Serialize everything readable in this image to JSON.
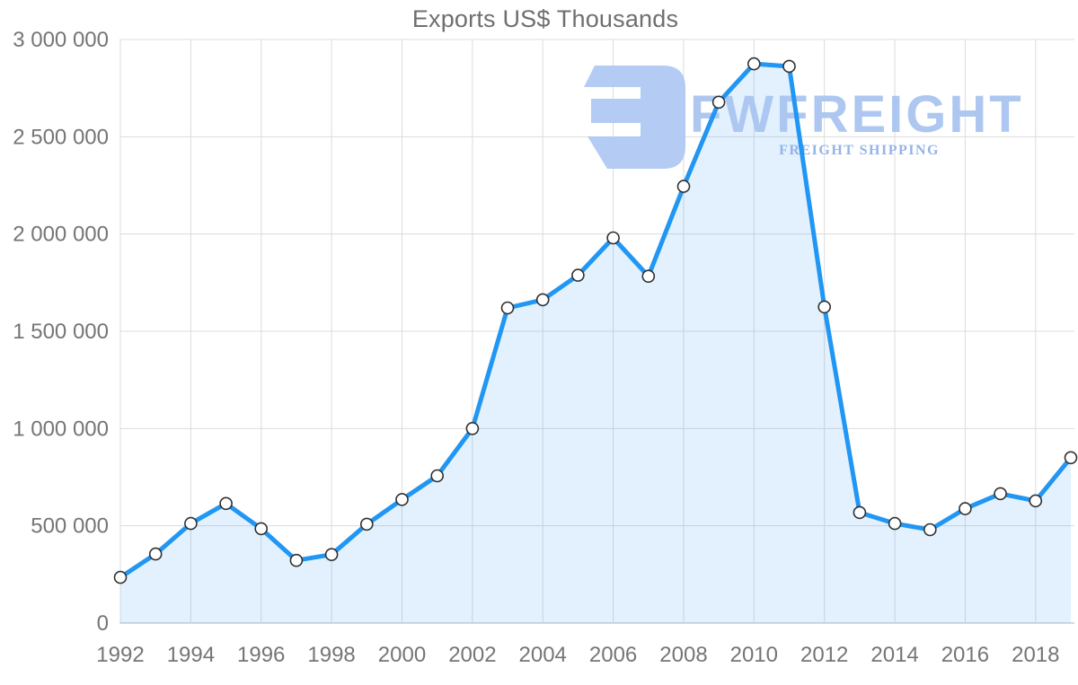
{
  "title": {
    "text": "Exports US$ Thousands"
  },
  "watermark": {
    "brand": "FWFREIGHT",
    "tagline": "FREIGHT SHIPPING",
    "brand_color": "#aac5f1",
    "tagline_color": "#8fb0e8",
    "logo_color": "#b0c8f3"
  },
  "chart_data": {
    "type": "area",
    "title": "Exports US$ Thousands",
    "xlabel": "",
    "ylabel": "",
    "x": [
      1992,
      1993,
      1994,
      1995,
      1996,
      1997,
      1998,
      1999,
      2000,
      2001,
      2002,
      2003,
      2004,
      2005,
      2006,
      2007,
      2008,
      2009,
      2010,
      2011,
      2012,
      2013,
      2014,
      2015,
      2016,
      2017,
      2018,
      2019
    ],
    "values": [
      235000,
      355000,
      512000,
      615000,
      485000,
      322000,
      352000,
      508000,
      635000,
      757000,
      1000000,
      1620000,
      1662000,
      1788000,
      1980000,
      1783000,
      2245000,
      2678000,
      2875000,
      2862000,
      1625000,
      568000,
      512000,
      480000,
      588000,
      665000,
      628000,
      850000
    ],
    "ylim": [
      0,
      3000000
    ],
    "y_ticks": [
      0,
      500000,
      1000000,
      1500000,
      2000000,
      2500000,
      3000000
    ],
    "y_tick_labels": [
      "0",
      "500 000",
      "1 000 000",
      "1 500 000",
      "2 000 000",
      "2 500 000",
      "3 000 000"
    ],
    "x_tick_years": [
      1992,
      1994,
      1996,
      1998,
      2000,
      2002,
      2004,
      2006,
      2008,
      2010,
      2012,
      2014,
      2016,
      2018
    ],
    "grid": true,
    "legend": "none",
    "colors": {
      "line": "#2196f3",
      "area": "rgba(33,150,243,0.13)",
      "marker_fill": "#ffffff",
      "marker_stroke": "#303030",
      "grid": "#dcdcdc",
      "baseline": "#b3b3b3",
      "label": "#757575"
    }
  }
}
